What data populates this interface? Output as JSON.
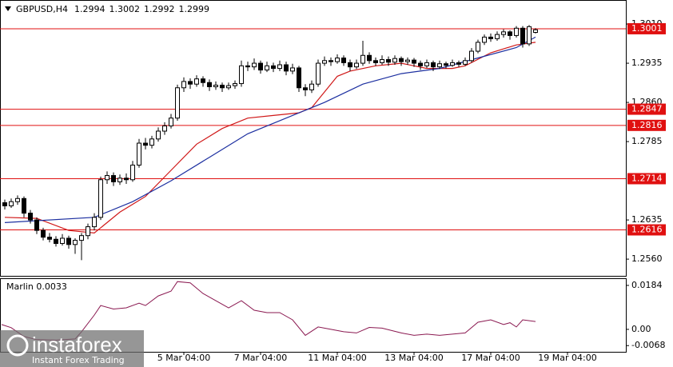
{
  "chart_data": [
    {
      "type": "candlestick",
      "title": "GBPUSD,H4",
      "open": [
        1.2668,
        1.2662,
        1.267,
        1.2676,
        1.2648,
        1.2635,
        1.2615,
        1.2602,
        1.2598,
        1.259,
        1.26,
        1.2588,
        1.2596,
        1.2605,
        1.2622,
        1.264,
        1.2712,
        1.272,
        1.2708,
        1.2715,
        1.2712,
        1.274,
        1.2782,
        1.2778,
        1.279,
        1.2805,
        1.2815,
        1.283,
        1.2888,
        1.29,
        1.2895,
        1.2905,
        1.2898,
        1.289,
        1.2893,
        1.2888,
        1.2892,
        1.2896,
        1.293,
        1.2928,
        1.2935,
        1.2922,
        1.293,
        1.2925,
        1.2932,
        1.292,
        1.2926,
        1.2888,
        1.2884,
        1.2895,
        1.2935,
        1.294,
        1.2938,
        1.2945,
        1.2936,
        1.2928,
        1.2935,
        1.295,
        1.294,
        1.2936,
        1.2942,
        1.2937,
        1.2944,
        1.2938,
        1.2941,
        1.2935,
        1.293,
        1.2936,
        1.2928,
        1.2934,
        1.2931,
        1.2936,
        1.2933,
        1.294,
        1.2958,
        1.2975,
        1.2985,
        1.2982,
        1.299,
        1.2995,
        1.2988,
        1.3002,
        1.2972,
        1.2994
      ],
      "high": [
        1.2674,
        1.2676,
        1.2682,
        1.268,
        1.2654,
        1.264,
        1.262,
        1.261,
        1.2604,
        1.2608,
        1.2605,
        1.26,
        1.261,
        1.2628,
        1.2648,
        1.2718,
        1.2728,
        1.2726,
        1.2722,
        1.2724,
        1.2748,
        1.279,
        1.2792,
        1.2796,
        1.2812,
        1.2822,
        1.2838,
        1.2894,
        1.2908,
        1.2906,
        1.2912,
        1.291,
        1.2904,
        1.29,
        1.2898,
        1.2898,
        1.2902,
        1.294,
        1.2938,
        1.2944,
        1.294,
        1.2938,
        1.2936,
        1.294,
        1.2938,
        1.2934,
        1.293,
        1.2895,
        1.2902,
        1.2942,
        1.2948,
        1.2946,
        1.2952,
        1.295,
        1.2942,
        1.2942,
        1.2978,
        1.2956,
        1.2946,
        1.295,
        1.2948,
        1.295,
        1.2948,
        1.2946,
        1.2945,
        1.294,
        1.2942,
        1.294,
        1.294,
        1.2938,
        1.2942,
        1.294,
        1.2946,
        1.2964,
        1.298,
        1.299,
        1.2992,
        1.2996,
        1.3,
        1.2998,
        1.3006,
        1.3006,
        1.3008,
        1.3002
      ],
      "low": [
        1.2655,
        1.2658,
        1.2664,
        1.264,
        1.2628,
        1.2608,
        1.2596,
        1.2592,
        1.2584,
        1.2586,
        1.258,
        1.257,
        1.2558,
        1.2598,
        1.2615,
        1.2635,
        1.2704,
        1.27,
        1.2702,
        1.2704,
        1.2708,
        1.2735,
        1.277,
        1.2772,
        1.2785,
        1.2798,
        1.281,
        1.2825,
        1.288,
        1.2886,
        1.289,
        1.289,
        1.2882,
        1.2884,
        1.288,
        1.2884,
        1.2886,
        1.289,
        1.292,
        1.2922,
        1.2915,
        1.2918,
        1.2918,
        1.292,
        1.2912,
        1.2914,
        1.288,
        1.2872,
        1.2878,
        1.289,
        1.293,
        1.293,
        1.2934,
        1.293,
        1.292,
        1.2924,
        1.293,
        1.2934,
        1.293,
        1.2932,
        1.293,
        1.2932,
        1.293,
        1.2932,
        1.2928,
        1.2922,
        1.2926,
        1.292,
        1.2924,
        1.2925,
        1.2928,
        1.2928,
        1.293,
        1.2936,
        1.2954,
        1.297,
        1.2976,
        1.2978,
        1.2984,
        1.298,
        1.2984,
        1.2965,
        1.2968,
        1.2992
      ],
      "close": [
        1.2662,
        1.267,
        1.2676,
        1.2648,
        1.2635,
        1.2615,
        1.2602,
        1.2598,
        1.259,
        1.26,
        1.2588,
        1.2596,
        1.2605,
        1.2622,
        1.264,
        1.2712,
        1.272,
        1.2708,
        1.2715,
        1.2712,
        1.274,
        1.2782,
        1.2778,
        1.279,
        1.2805,
        1.2815,
        1.283,
        1.2888,
        1.29,
        1.2895,
        1.2905,
        1.2898,
        1.289,
        1.2893,
        1.2888,
        1.2892,
        1.2896,
        1.293,
        1.2928,
        1.2935,
        1.2922,
        1.293,
        1.2925,
        1.2932,
        1.292,
        1.2926,
        1.2888,
        1.2884,
        1.2895,
        1.2935,
        1.294,
        1.2938,
        1.2945,
        1.2936,
        1.2928,
        1.2935,
        1.295,
        1.294,
        1.2936,
        1.2942,
        1.2937,
        1.2944,
        1.2938,
        1.2941,
        1.2935,
        1.293,
        1.2936,
        1.2928,
        1.2934,
        1.2931,
        1.2936,
        1.2933,
        1.294,
        1.2958,
        1.2975,
        1.2985,
        1.2982,
        1.299,
        1.2995,
        1.2988,
        1.3002,
        1.2972,
        1.3005,
        1.2999
      ],
      "lines": [
        {
          "color": "#d01818",
          "x": [
            0,
            5,
            10,
            14,
            18,
            22,
            26,
            30,
            34,
            38,
            42,
            46,
            48,
            50,
            52,
            54,
            58,
            62,
            66,
            70,
            72,
            76,
            80,
            83
          ],
          "values": [
            1.264,
            1.2638,
            1.2615,
            1.261,
            1.265,
            1.268,
            1.273,
            1.278,
            1.281,
            1.283,
            1.2835,
            1.284,
            1.285,
            1.288,
            1.291,
            1.292,
            1.293,
            1.2935,
            1.2925,
            1.2925,
            1.293,
            1.2955,
            1.297,
            1.2975
          ]
        },
        {
          "color": "#1c2fa0",
          "x": [
            0,
            14,
            20,
            26,
            32,
            38,
            44,
            50,
            56,
            62,
            68,
            74,
            80,
            83
          ],
          "values": [
            1.263,
            1.264,
            1.267,
            1.271,
            1.2755,
            1.28,
            1.283,
            1.286,
            1.2895,
            1.2915,
            1.2925,
            1.2945,
            1.2965,
            1.2985
          ]
        }
      ],
      "levels": [
        1.3001,
        1.2847,
        1.2816,
        1.2714,
        1.2616
      ],
      "level_color": "#e01010",
      "ylim": [
        1.2528,
        1.3056
      ],
      "yticks": [
        {
          "value": 1.301,
          "label": "1.3010"
        },
        1.2935,
        {
          "value": 1.286,
          "label": "1.2860"
        },
        1.2785,
        1.2635,
        {
          "value": 1.256,
          "label": "1.2560"
        }
      ],
      "xlim": [
        -0.75,
        97.125
      ],
      "xticks": [
        {
          "value": 28,
          "label": "5 Mar 04:00"
        },
        {
          "value": 40,
          "label": "7 Mar 04:00"
        },
        {
          "value": 52,
          "label": "11 Mar 04:00"
        },
        {
          "value": 64,
          "label": "13 Mar 04:00"
        },
        {
          "value": 76,
          "label": "17 Mar 04:00"
        },
        {
          "value": 88,
          "label": "19 Mar 04:00"
        }
      ]
    },
    {
      "type": "line",
      "title": "Marlin 0.0033",
      "color": "#8a1850",
      "x": [
        -0.5,
        1,
        3,
        5,
        8,
        11,
        12,
        14,
        15,
        17,
        19,
        21,
        22,
        24,
        26,
        27,
        29,
        31,
        33,
        35,
        37,
        39,
        41,
        43,
        45,
        47,
        49,
        51,
        53,
        55,
        57,
        59,
        62,
        64,
        66,
        68,
        70,
        72,
        74,
        76,
        78,
        79,
        80,
        81,
        83
      ],
      "values": [
        0.002,
        0.0007,
        -0.003,
        -0.0043,
        -0.0045,
        -0.004,
        -0.001,
        0.006,
        0.01,
        0.0085,
        0.009,
        0.011,
        0.01,
        0.014,
        0.016,
        0.02,
        0.0195,
        0.015,
        0.012,
        0.009,
        0.012,
        0.008,
        0.007,
        0.007,
        0.004,
        -0.0025,
        0.001,
        0.0,
        -0.001,
        -0.0015,
        0.0008,
        0.0005,
        -0.0015,
        -0.0025,
        -0.002,
        -0.0025,
        -0.002,
        -0.0015,
        0.003,
        0.004,
        0.002,
        0.0028,
        0.001,
        0.004,
        0.0033
      ],
      "ylim": [
        -0.0094,
        0.0214
      ],
      "yticks": [
        0.0184,
        {
          "value": 0,
          "label": "0.00"
        },
        -0.0068
      ]
    }
  ],
  "watermark": {
    "brand": "instaforex",
    "tagline": "Instant Forex Trading"
  }
}
